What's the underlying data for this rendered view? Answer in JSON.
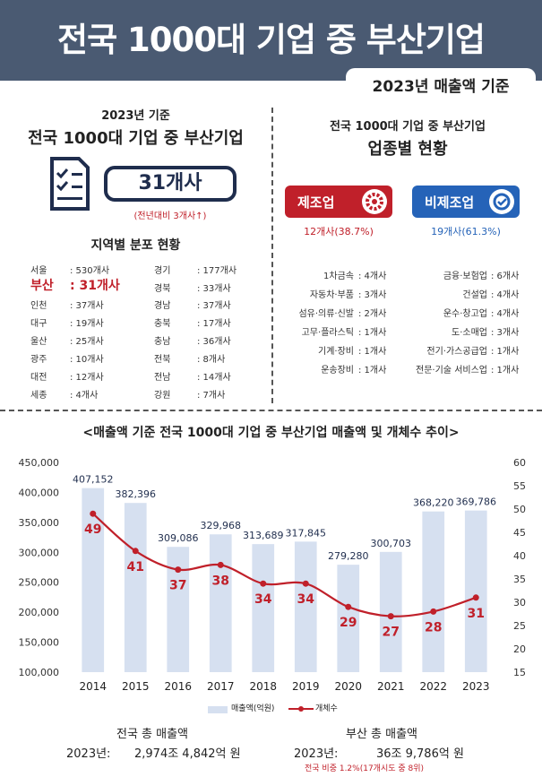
{
  "header": {
    "title": "전국 1000대 기업 중 부산기업",
    "basis": "2023년 매출액 기준"
  },
  "left_panel": {
    "year_label": "2023년 기준",
    "title": "전국 1000대 기업 중 부산기업",
    "count": "31개사",
    "yoy": "(전년대비 3개사↑)",
    "region_title": "지역별 분포 현황",
    "regions_left": [
      {
        "name": "서울",
        "value": ": 530개사"
      },
      {
        "name": "부산",
        "value": ": 31개사"
      },
      {
        "name": "인천",
        "value": ": 37개사"
      },
      {
        "name": "대구",
        "value": ": 19개사"
      },
      {
        "name": "울산",
        "value": ": 25개사"
      },
      {
        "name": "광주",
        "value": ": 10개사"
      },
      {
        "name": "대전",
        "value": ": 12개사"
      },
      {
        "name": "세종",
        "value": ": 4개사"
      }
    ],
    "regions_right": [
      {
        "name": "경기",
        "value": ": 177개사"
      },
      {
        "name": "경북",
        "value": ": 33개사"
      },
      {
        "name": "경남",
        "value": ": 37개사"
      },
      {
        "name": "충북",
        "value": ": 17개사"
      },
      {
        "name": "충남",
        "value": ": 36개사"
      },
      {
        "name": "전북",
        "value": ": 8개사"
      },
      {
        "name": "전남",
        "value": ": 14개사"
      },
      {
        "name": "강원",
        "value": ": 7개사"
      }
    ]
  },
  "right_panel": {
    "title_line1": "전국 1000대 기업 중 부산기업",
    "title_line2": "업종별 현황",
    "manufacturing": {
      "label": "제조업",
      "stat": "12개사(38.7%)",
      "color": "#c0202a",
      "icon": "gear-icon"
    },
    "non_manufacturing": {
      "label": "비제조업",
      "stat": "19개사(61.3%)",
      "color": "#2563b8",
      "icon": "recycle-icon"
    },
    "industries_left": [
      {
        "name": "1차금속",
        "value": ": 4개사"
      },
      {
        "name": "자동차·부품",
        "value": ": 3개사"
      },
      {
        "name": "섬유·의류·신발",
        "value": ": 2개사"
      },
      {
        "name": "고무·플라스틱",
        "value": ": 1개사"
      },
      {
        "name": "기계·장비",
        "value": ": 1개사"
      },
      {
        "name": "운송장비",
        "value": ": 1개사"
      }
    ],
    "industries_right": [
      {
        "name": "금융·보험업",
        "value": ": 6개사"
      },
      {
        "name": "건설업",
        "value": ": 4개사"
      },
      {
        "name": "운수·창고업",
        "value": ": 4개사"
      },
      {
        "name": "도·소매업",
        "value": ": 3개사"
      },
      {
        "name": "전기·가스공급업",
        "value": ": 1개사"
      },
      {
        "name": "전문·기술 서비스업",
        "value": ": 1개사"
      }
    ]
  },
  "chart_title": "<매출액 기준 전국 1000대 기업 중 부산기업 매출액 및 개체수 추이>",
  "chart_data": {
    "type": "bar",
    "categories": [
      "2014",
      "2015",
      "2016",
      "2017",
      "2018",
      "2019",
      "2020",
      "2021",
      "2022",
      "2023"
    ],
    "series": [
      {
        "name": "매출액(억원)",
        "type": "bar",
        "axis": "left",
        "values": [
          407152,
          382396,
          309086,
          329968,
          313689,
          317845,
          279280,
          300703,
          368220,
          369786
        ],
        "labels": [
          "407,152",
          "382,396",
          "309,086",
          "329,968",
          "313,689",
          "317,845",
          "279,280",
          "300,703",
          "368,220",
          "369,786"
        ],
        "color": "#d6e0f0"
      },
      {
        "name": "개체수",
        "type": "line",
        "axis": "right",
        "values": [
          49,
          41,
          37,
          38,
          34,
          34,
          29,
          27,
          28,
          31
        ],
        "color": "#c0202a"
      }
    ],
    "y_left": {
      "range": [
        100000,
        450000
      ],
      "ticks": [
        "100,000",
        "150,000",
        "200,000",
        "250,000",
        "300,000",
        "350,000",
        "400,000",
        "450,000"
      ]
    },
    "y_right": {
      "range": [
        15,
        60
      ],
      "ticks": [
        "15",
        "20",
        "25",
        "30",
        "35",
        "40",
        "45",
        "50",
        "55",
        "60"
      ]
    },
    "grid": false,
    "legend": "bottom"
  },
  "totals": {
    "national_label": "전국 총 매출액",
    "national_year": "2023년:",
    "national_value": "2,974조 4,842억 원",
    "busan_label": "부산 총 매출액",
    "busan_year": "2023년:",
    "busan_value": "36조 9,786억 원",
    "busan_note": "전국 비중 1.2%(17개시도 중 8위)"
  }
}
